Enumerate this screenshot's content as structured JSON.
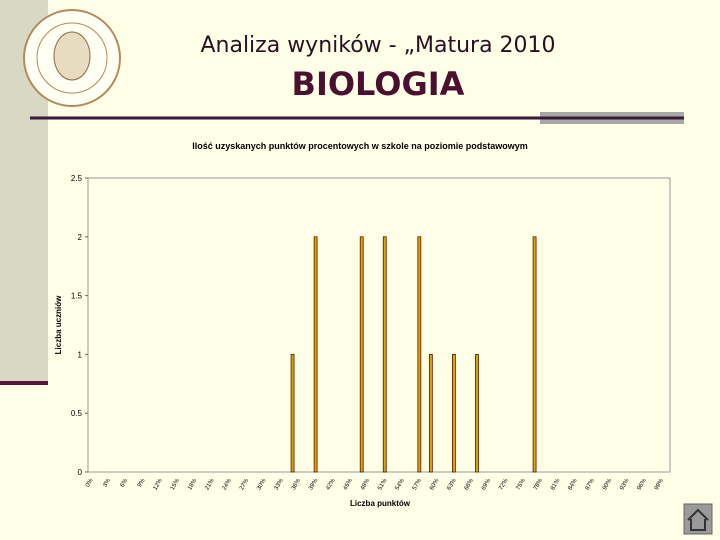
{
  "header": {
    "title": "Analiza wyników  - „Matura 2010",
    "subtitle": "BIOLOGIA"
  },
  "chart_data": {
    "type": "bar",
    "title": "Ilość uzyskanych punktów procentowych w szkole na poziomie podstawowym",
    "x_label": "Liczba punktów",
    "y_label": "Liczba uczniów",
    "categories": [
      "0%",
      null,
      null,
      "3%",
      null,
      null,
      "6%",
      null,
      null,
      "9%",
      null,
      null,
      "12%",
      null,
      null,
      "15%",
      null,
      null,
      "18%",
      null,
      null,
      "21%",
      null,
      null,
      "24%",
      null,
      null,
      "27%",
      null,
      null,
      "30%",
      null,
      null,
      "33%",
      null,
      null,
      "36%",
      null,
      null,
      "39%",
      null,
      null,
      "42%",
      null,
      null,
      "45%",
      null,
      null,
      "48%",
      null,
      null,
      "51%",
      null,
      null,
      "54%",
      null,
      null,
      "57%",
      null,
      null,
      "60%",
      null,
      null,
      "63%",
      null,
      null,
      "66%",
      null,
      null,
      "69%",
      null,
      null,
      "72%",
      null,
      null,
      "75%",
      null,
      null,
      "78%",
      null,
      null,
      "81%",
      null,
      null,
      "84%",
      null,
      null,
      "87%",
      null,
      null,
      "90%",
      null,
      null,
      "93%",
      null,
      null,
      "96%",
      null,
      null,
      "99%",
      null
    ],
    "values": [
      0,
      0,
      0,
      0,
      0,
      0,
      0,
      0,
      0,
      0,
      0,
      0,
      0,
      0,
      0,
      0,
      0,
      0,
      0,
      0,
      0,
      0,
      0,
      0,
      0,
      0,
      0,
      0,
      0,
      0,
      0,
      0,
      0,
      0,
      0,
      1,
      0,
      0,
      0,
      2,
      0,
      0,
      0,
      0,
      0,
      0,
      0,
      2,
      0,
      0,
      0,
      2,
      0,
      0,
      0,
      0,
      0,
      2,
      0,
      1,
      0,
      0,
      0,
      1,
      0,
      0,
      0,
      1,
      0,
      0,
      0,
      0,
      0,
      0,
      0,
      0,
      0,
      2,
      0,
      0,
      0,
      0,
      0,
      0,
      0,
      0,
      0,
      0,
      0,
      0,
      0,
      0,
      0,
      0,
      0,
      0,
      0,
      0,
      0,
      0,
      0
    ],
    "color": "#d9a400",
    "ylim": [
      0,
      2.5
    ],
    "yticks": [
      0,
      0.5,
      1,
      1.5,
      2,
      2.5
    ]
  }
}
